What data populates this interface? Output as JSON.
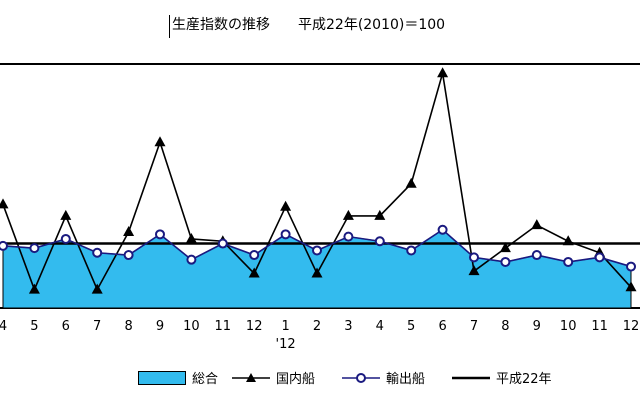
{
  "chart_data": {
    "type": "line",
    "title": "生産指数の推移　　平成22年(2010)＝100",
    "categories": [
      "4",
      "5",
      "6",
      "7",
      "8",
      "9",
      "10",
      "11",
      "12",
      "1",
      "2",
      "3",
      "4",
      "5",
      "6",
      "7",
      "8",
      "9",
      "10",
      "11",
      "12"
    ],
    "year_marker": {
      "index": 9,
      "label": "'12"
    },
    "reference_value": 100,
    "ylim": [
      72,
      178
    ],
    "series": [
      {
        "name": "総合",
        "style": "area",
        "color": "#33bbee",
        "values": [
          99,
          98,
          102,
          96,
          95,
          104,
          93,
          100,
          95,
          104,
          97,
          103,
          101,
          97,
          106,
          94,
          92,
          95,
          92,
          94,
          90
        ]
      },
      {
        "name": "国内船",
        "style": "line-triangle",
        "color": "#000000",
        "values": [
          117,
          80,
          112,
          80,
          105,
          144,
          102,
          101,
          87,
          116,
          87,
          112,
          112,
          126,
          174,
          88,
          98,
          108,
          101,
          96,
          81
        ]
      },
      {
        "name": "輸出船",
        "style": "line-circle",
        "color": "#1a1a80",
        "values": [
          99,
          98,
          102,
          96,
          95,
          104,
          93,
          100,
          95,
          104,
          97,
          103,
          101,
          97,
          106,
          94,
          92,
          95,
          92,
          94,
          90
        ]
      },
      {
        "name": "平成22年",
        "style": "reference",
        "color": "#000000",
        "values": [
          100,
          100,
          100,
          100,
          100,
          100,
          100,
          100,
          100,
          100,
          100,
          100,
          100,
          100,
          100,
          100,
          100,
          100,
          100,
          100,
          100
        ]
      }
    ]
  }
}
